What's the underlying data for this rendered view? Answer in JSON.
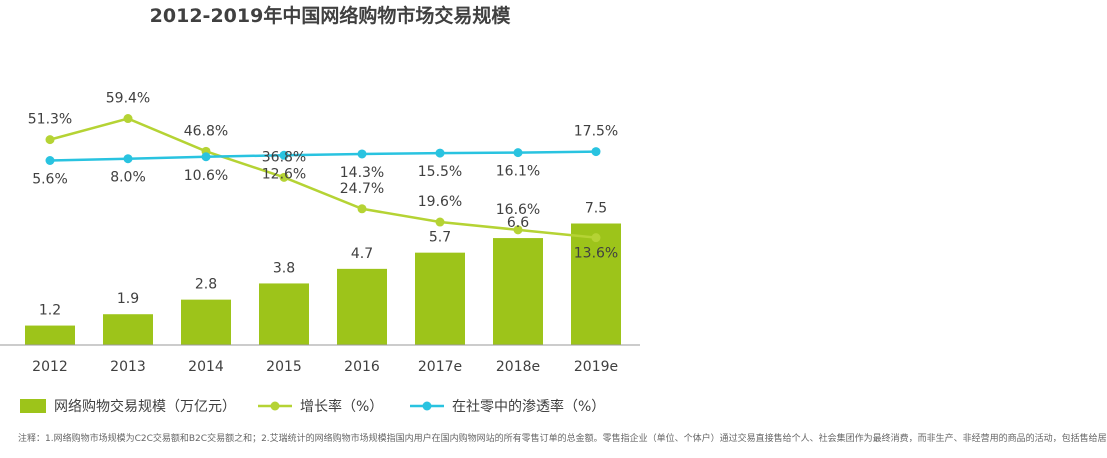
{
  "chart_data": {
    "type": "bar",
    "title": "2012-2019年中国网络购物市场交易规模",
    "categories": [
      "2012",
      "2013",
      "2014",
      "2015",
      "2016",
      "2017e",
      "2018e",
      "2019e"
    ],
    "series": [
      {
        "name": "网络购物交易规模（万亿元）",
        "type": "bar",
        "values": [
          1.2,
          1.9,
          2.8,
          3.8,
          4.7,
          5.7,
          6.6,
          7.5
        ],
        "labels": [
          "1.2",
          "1.9",
          "2.8",
          "3.8",
          "4.7",
          "5.7",
          "6.6",
          "7.5"
        ],
        "color": "#9dc41a"
      },
      {
        "name": "增长率（%）",
        "type": "line",
        "values": [
          51.3,
          59.4,
          46.8,
          36.8,
          24.7,
          19.6,
          16.6,
          13.6
        ],
        "labels": [
          "51.3%",
          "59.4%",
          "46.8%",
          "36.8%",
          "24.7%",
          "19.6%",
          "16.6%",
          "13.6%"
        ],
        "color": "#b5d334"
      },
      {
        "name": "在社零中的渗透率（%）",
        "type": "line",
        "values": [
          5.6,
          8.0,
          10.6,
          12.6,
          14.3,
          15.5,
          16.1,
          17.5
        ],
        "labels": [
          "5.6%",
          "8.0%",
          "10.6%",
          "12.6%",
          "14.3%",
          "15.5%",
          "16.1%",
          "17.5%"
        ],
        "color": "#29c3e0"
      }
    ],
    "legend": "bottom",
    "grid": false
  },
  "footnote": "注释：1.网络购物市场规模为C2C交易额和B2C交易额之和；2.艾瑞统计的网络购物市场规模指国内用户在国内购物网站的所有零售订单的总金额。零售指企业（单位、个体户）通过交易直接售给个人、社会集团作为最终消费，而非生产、非经营用的商品的活动，包括售给居"
}
